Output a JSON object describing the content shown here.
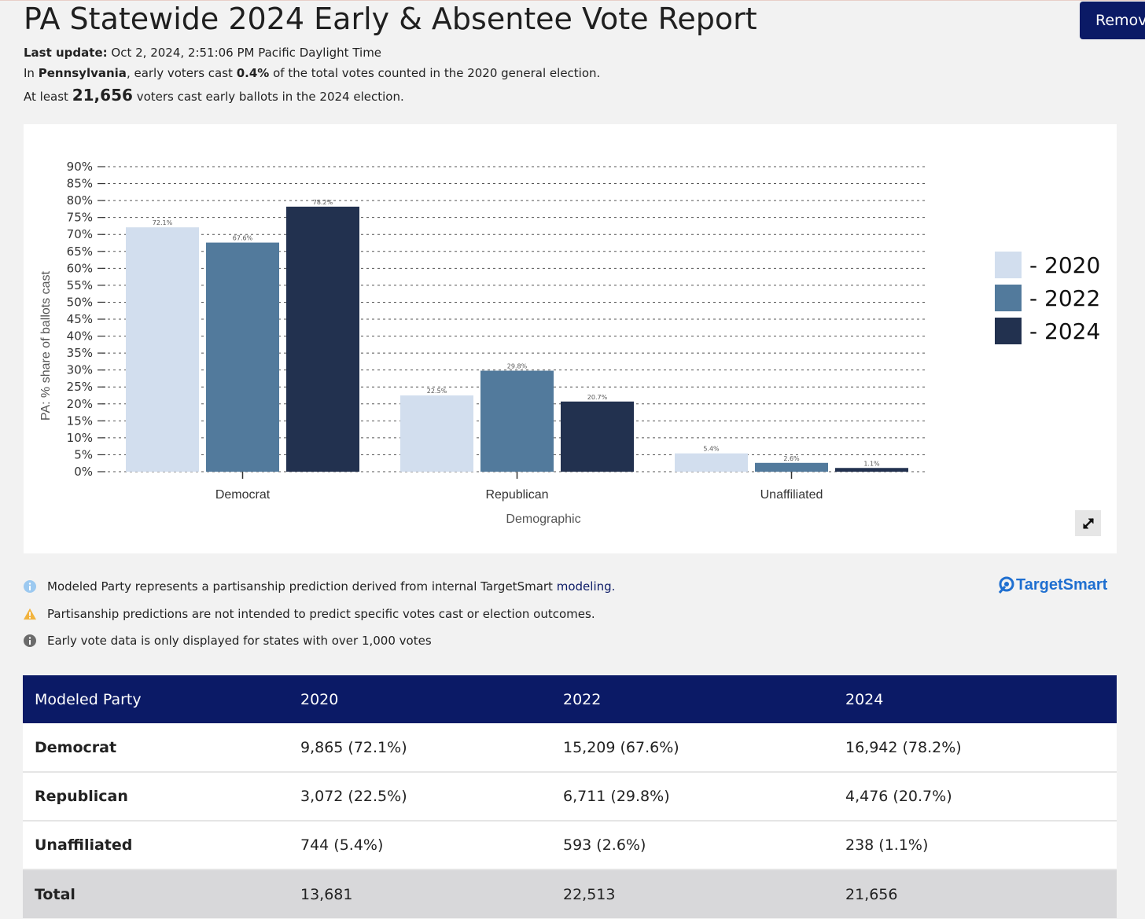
{
  "page": {
    "title": "PA Statewide 2024 Early & Absentee Vote Report",
    "remove_button": "Remove",
    "last_update_label": "Last update:",
    "last_update_value": "Oct 2, 2024, 2:51:06 PM Pacific Daylight Time",
    "summary1_prefix": "In",
    "summary1_state": "Pennsylvania",
    "summary1_mid": ", early voters cast",
    "summary1_pct": "0.4%",
    "summary1_suffix": "of the total votes counted in the 2020 general election.",
    "summary2_prefix": "At least",
    "summary2_count": "21,656",
    "summary2_suffix": "voters cast early ballots in the 2024 election."
  },
  "colors": {
    "y2020": "#d2deee",
    "y2022": "#527a9c",
    "y2024": "#22314f",
    "header_bg": "#0b1a66"
  },
  "chart_data": {
    "type": "bar",
    "categories": [
      "Democrat",
      "Republican",
      "Unaffiliated"
    ],
    "series": [
      {
        "name": "- 2020",
        "values": [
          72.1,
          22.5,
          5.4
        ],
        "labels": [
          "72.1%",
          "22.5%",
          "5.4%"
        ]
      },
      {
        "name": "- 2022",
        "values": [
          67.6,
          29.8,
          2.6
        ],
        "labels": [
          "67.6%",
          "29.8%",
          "2.6%"
        ]
      },
      {
        "name": "- 2024",
        "values": [
          78.2,
          20.7,
          1.1
        ],
        "labels": [
          "78.2%",
          "20.7%",
          "1.1%"
        ]
      }
    ],
    "xlabel": "Demographic",
    "ylabel": "PA: % share of ballots cast",
    "ylim": [
      0,
      90
    ],
    "yticks": [
      "0%",
      "5%",
      "10%",
      "15%",
      "20%",
      "25%",
      "30%",
      "35%",
      "40%",
      "45%",
      "50%",
      "55%",
      "60%",
      "65%",
      "70%",
      "75%",
      "80%",
      "85%",
      "90%"
    ],
    "grid": true,
    "legend": "right"
  },
  "branding": {
    "logo_text": "TargetSmart"
  },
  "notes": [
    {
      "icon": "info-icon",
      "text": "Modeled Party represents a partisanship prediction derived from internal TargetSmart",
      "link": "modeling."
    },
    {
      "icon": "warning-icon",
      "text": "Partisanship predictions are not intended to predict specific votes cast or election outcomes."
    },
    {
      "icon": "info-icon",
      "text": "Early vote data is only displayed for states with over 1,000 votes"
    }
  ],
  "table": {
    "headers": [
      "Modeled Party",
      "2020",
      "2022",
      "2024"
    ],
    "rows": [
      [
        "Democrat",
        "9,865 (72.1%)",
        "15,209 (67.6%)",
        "16,942 (78.2%)"
      ],
      [
        "Republican",
        "3,072 (22.5%)",
        "6,711 (29.8%)",
        "4,476 (20.7%)"
      ],
      [
        "Unaffiliated",
        "744 (5.4%)",
        "593 (2.6%)",
        "238 (1.1%)"
      ]
    ],
    "total": [
      "Total",
      "13,681",
      "22,513",
      "21,656"
    ]
  }
}
